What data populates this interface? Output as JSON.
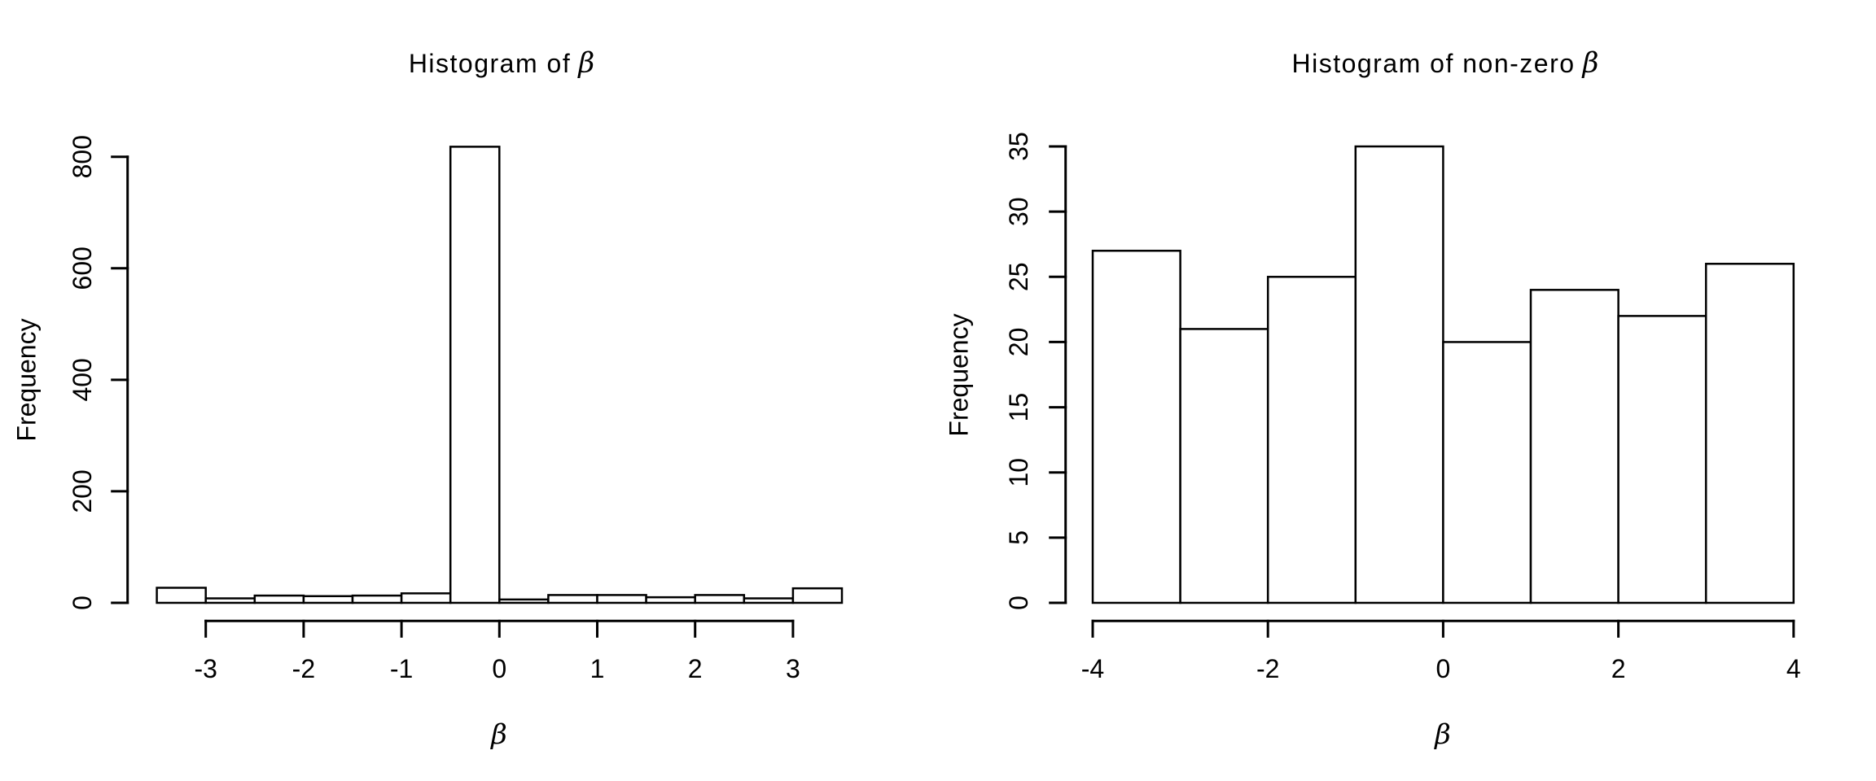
{
  "figure": {
    "background": "#ffffff",
    "foreground": "#000000"
  },
  "chart_data": [
    {
      "type": "bar",
      "title": "Histogram of β",
      "title_prefix": "Histogram of",
      "title_symbol": "β",
      "xlabel": "β",
      "ylabel": "Frequency",
      "bin_start": -3.5,
      "bin_width": 0.5,
      "bin_edges": [
        -3.5,
        -3,
        -2.5,
        -2,
        -1.5,
        -1,
        -0.5,
        0,
        0.5,
        1,
        1.5,
        2,
        2.5,
        3,
        3.5
      ],
      "frequencies": [
        27,
        8,
        13,
        12,
        13,
        17,
        818,
        6,
        14,
        14,
        10,
        14,
        8,
        26
      ],
      "x_ticks": [
        -3,
        -2,
        -1,
        0,
        1,
        2,
        3
      ],
      "x_tick_labels": [
        "-3",
        "-2",
        "-1",
        "0",
        "1",
        "2",
        "3"
      ],
      "y_ticks": [
        0,
        200,
        400,
        600,
        800
      ],
      "y_tick_labels": [
        "0",
        "200",
        "400",
        "600",
        "800"
      ],
      "xlim": [
        -3.5,
        3.5
      ],
      "ylim": [
        0,
        800
      ],
      "grid": "off",
      "legend": "none",
      "bar_fill": "#ffffff",
      "bar_stroke": "#000000"
    },
    {
      "type": "bar",
      "title": "Histogram of non-zero β",
      "title_prefix": "Histogram of non-zero",
      "title_symbol": "β",
      "xlabel": "β",
      "ylabel": "Frequency",
      "bin_start": -4,
      "bin_width": 1,
      "bin_edges": [
        -4,
        -3,
        -2,
        -1,
        0,
        1,
        2,
        3,
        4
      ],
      "frequencies": [
        27,
        21,
        25,
        35,
        20,
        24,
        22,
        26
      ],
      "x_ticks": [
        -4,
        -2,
        0,
        2,
        4
      ],
      "x_tick_labels": [
        "-4",
        "-2",
        "0",
        "2",
        "4"
      ],
      "y_ticks": [
        0,
        5,
        10,
        15,
        20,
        25,
        30,
        35
      ],
      "y_tick_labels": [
        "0",
        "5",
        "10",
        "15",
        "20",
        "25",
        "30",
        "35"
      ],
      "xlim": [
        -4,
        4
      ],
      "ylim": [
        0,
        35
      ],
      "grid": "off",
      "legend": "none",
      "bar_fill": "#ffffff",
      "bar_stroke": "#000000"
    }
  ]
}
